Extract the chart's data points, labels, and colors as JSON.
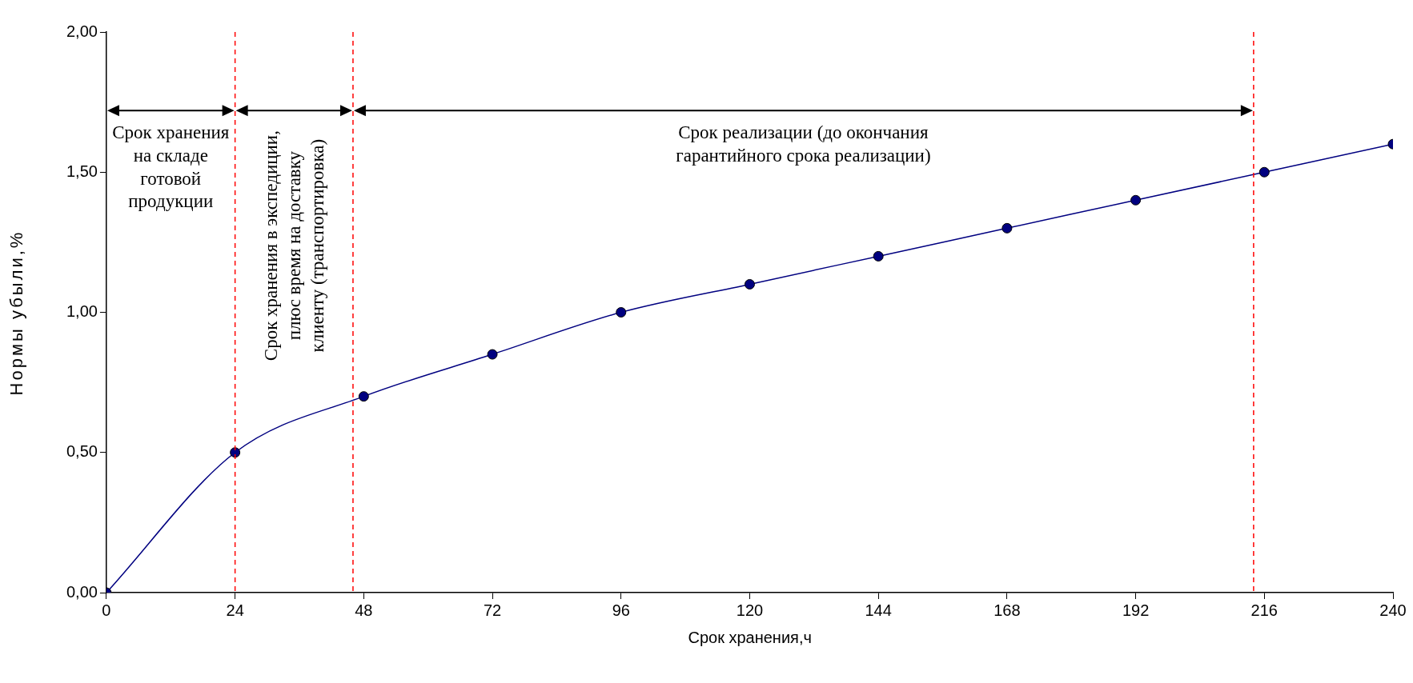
{
  "chart_data": {
    "type": "line",
    "xlabel": "Срок хранения,ч",
    "ylabel": "Нормы убыли,%",
    "x": [
      0,
      24,
      48,
      72,
      96,
      120,
      144,
      168,
      192,
      216,
      240
    ],
    "series": [
      {
        "color": "#000080",
        "values": [
          0,
          0.5,
          0.7,
          0.85,
          1.0,
          1.1,
          1.2,
          1.3,
          1.4,
          1.5,
          1.6
        ]
      }
    ],
    "xlim": [
      0,
      240
    ],
    "xticks": [
      0,
      24,
      48,
      72,
      96,
      120,
      144,
      168,
      192,
      216,
      240
    ],
    "ylim": [
      0,
      2
    ],
    "yticks": [
      {
        "value": 0,
        "label": "0,00"
      },
      {
        "value": 0.5,
        "label": "0,50"
      },
      {
        "value": 1,
        "label": "1,00"
      },
      {
        "value": 1.5,
        "label": "1,50"
      },
      {
        "value": 2,
        "label": "2,00"
      }
    ],
    "grid": false,
    "legend": false,
    "marker": "circle",
    "line_style": "solid",
    "ref_lines": [
      {
        "axis": "x",
        "value": 24,
        "color": "#ff0000",
        "line_style": "dashed"
      },
      {
        "axis": "x",
        "value": 46,
        "color": "#ff0000",
        "line_style": "dashed"
      },
      {
        "axis": "x",
        "value": 214,
        "color": "#ff0000",
        "line_style": "dashed"
      }
    ],
    "annotations": [
      "Срок хранения на складе готовой продукции",
      "Срок хранения в экспедиции, плюс время на доставку клиенту (транспортировка)",
      "Срок реализации (до окончания гарантийного срока реализации)"
    ]
  }
}
